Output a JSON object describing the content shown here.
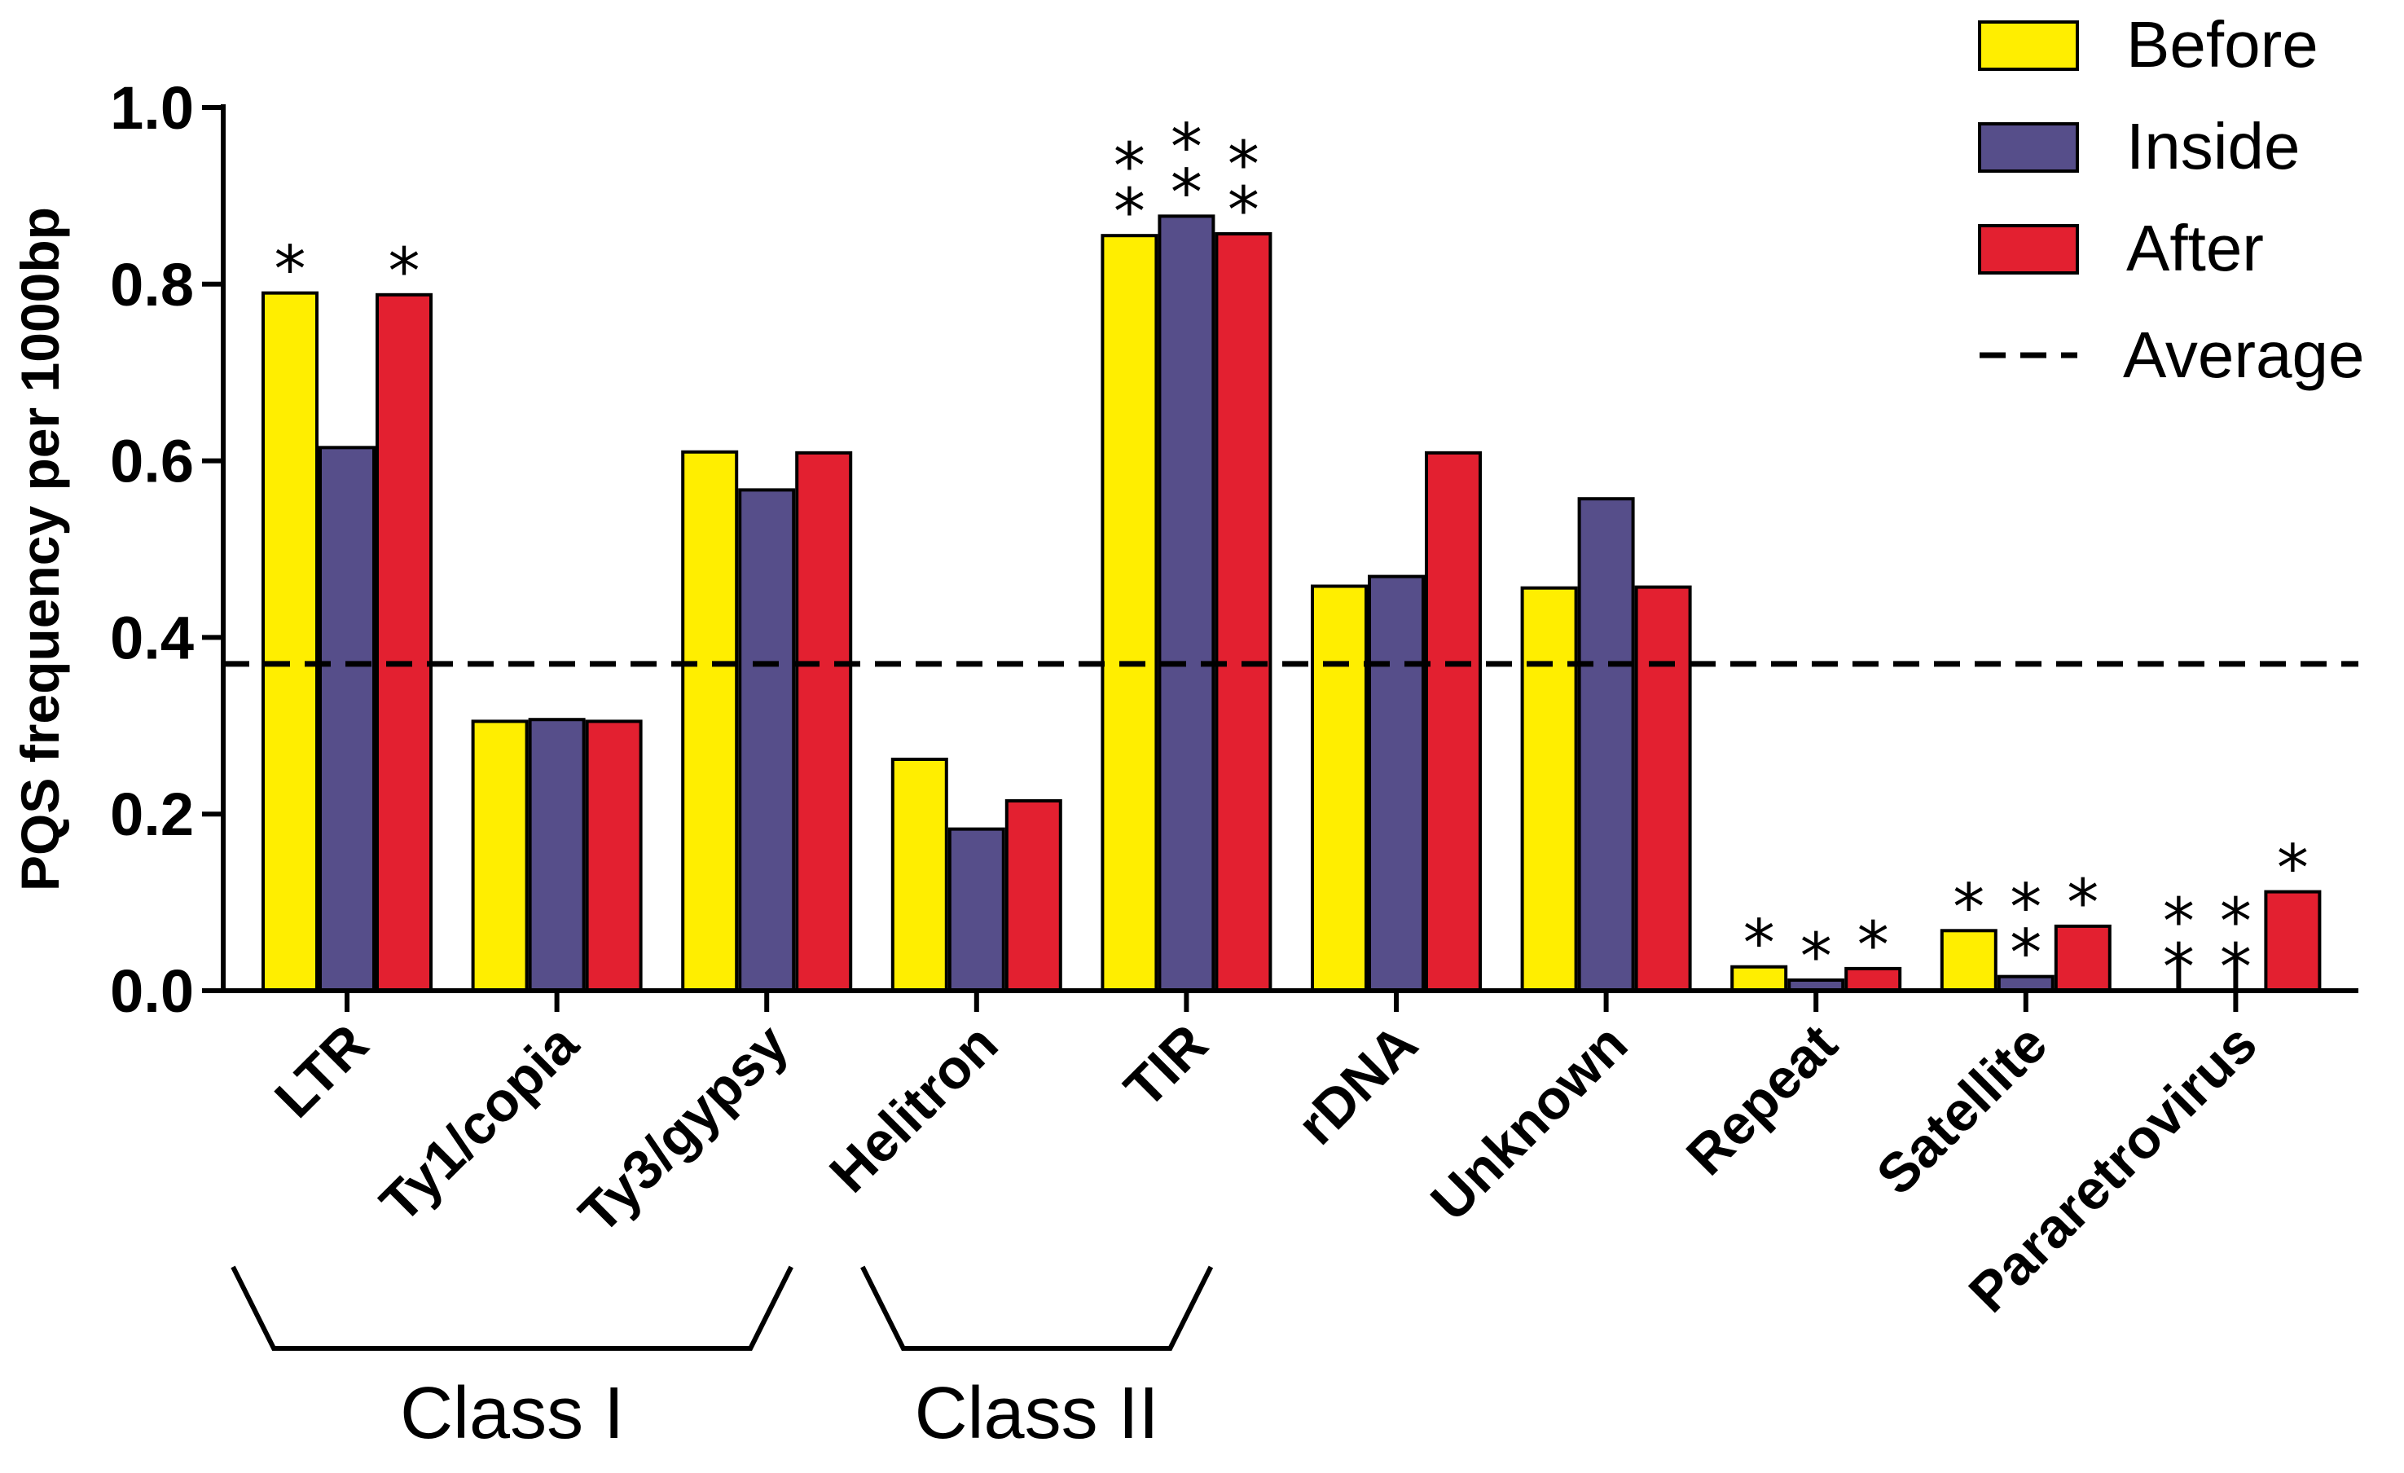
{
  "chart_data": {
    "type": "bar",
    "title": "",
    "xlabel": "",
    "ylabel": "PQS frequency per 1000bp",
    "ylim": [
      0,
      1.0
    ],
    "yticks": [
      "0.0",
      "0.2",
      "0.4",
      "0.6",
      "0.8",
      "1.0"
    ],
    "categories": [
      "LTR",
      "Ty1/copia",
      "Ty3/gypsy",
      "Helitron",
      "TIR",
      "rDNA",
      "Unknown",
      "Repeat",
      "Satellite",
      "Pararetrovirus"
    ],
    "series": [
      {
        "name": "Before",
        "color": "#FFEE00",
        "values": [
          0.79,
          0.305,
          0.61,
          0.262,
          0.855,
          0.458,
          0.456,
          0.027,
          0.068,
          0
        ]
      },
      {
        "name": "Inside",
        "color": "#564E8A",
        "values": [
          0.615,
          0.307,
          0.567,
          0.183,
          0.877,
          0.469,
          0.557,
          0.012,
          0.016,
          0
        ]
      },
      {
        "name": "After",
        "color": "#E32030",
        "values": [
          0.788,
          0.305,
          0.609,
          0.215,
          0.857,
          0.609,
          0.457,
          0.025,
          0.073,
          0.112
        ]
      }
    ],
    "average": {
      "label": "Average",
      "value": 0.37
    },
    "significance": [
      {
        "category": "LTR",
        "series": "Before",
        "marks": [
          "*"
        ]
      },
      {
        "category": "LTR",
        "series": "After",
        "marks": [
          "*"
        ]
      },
      {
        "category": "TIR",
        "series": "Before",
        "marks": [
          "*",
          "*"
        ]
      },
      {
        "category": "TIR",
        "series": "Inside",
        "marks": [
          "*",
          "*"
        ]
      },
      {
        "category": "TIR",
        "series": "After",
        "marks": [
          "*",
          "*"
        ]
      },
      {
        "category": "Repeat",
        "series": "Before",
        "marks": [
          "*"
        ]
      },
      {
        "category": "Repeat",
        "series": "Inside",
        "marks": [
          "*"
        ]
      },
      {
        "category": "Repeat",
        "series": "After",
        "marks": [
          "*"
        ]
      },
      {
        "category": "Satellite",
        "series": "Before",
        "marks": [
          "*"
        ]
      },
      {
        "category": "Satellite",
        "series": "Inside",
        "marks": [
          "*",
          "*"
        ]
      },
      {
        "category": "Satellite",
        "series": "After",
        "marks": [
          "*"
        ]
      },
      {
        "category": "Pararetrovirus",
        "series": "Before",
        "marks": [
          "*",
          "*"
        ]
      },
      {
        "category": "Pararetrovirus",
        "series": "Inside",
        "marks": [
          "*",
          "*"
        ]
      },
      {
        "category": "Pararetrovirus",
        "series": "After",
        "marks": [
          "*"
        ]
      }
    ],
    "groups": [
      {
        "label": "Class I",
        "categories": [
          "LTR",
          "Ty1/copia",
          "Ty3/gypsy"
        ]
      },
      {
        "label": "Class II",
        "categories": [
          "Helitron",
          "TIR"
        ]
      }
    ],
    "legend": [
      "Before",
      "Inside",
      "After",
      "Average"
    ]
  }
}
